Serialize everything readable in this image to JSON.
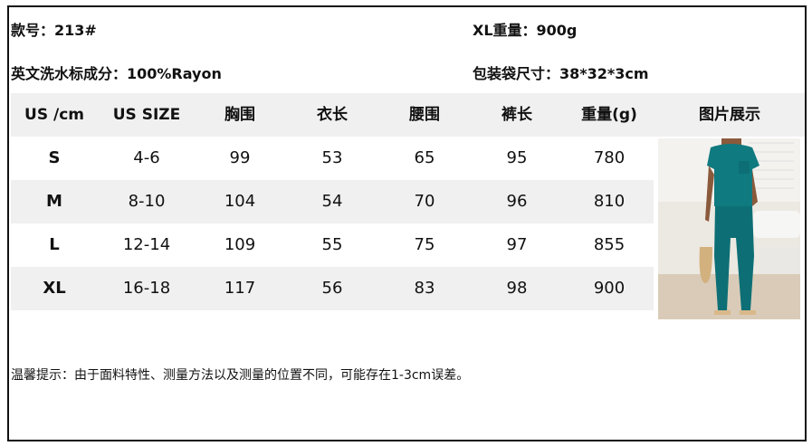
{
  "info": {
    "style_no": "款号：213#",
    "xl_weight": "XL重量：900g",
    "composition": "英文洗水标成分：100%Rayon",
    "bag_size": "包装袋尺寸：38*32*3cm"
  },
  "table": {
    "headers": [
      "US /cm",
      "US SIZE",
      "胸围",
      "衣长",
      "腰围",
      "裤长",
      "重量(g)",
      "图片展示"
    ],
    "rows": [
      [
        "S",
        "4-6",
        "99",
        "53",
        "65",
        "95",
        "780"
      ],
      [
        "M",
        "8-10",
        "104",
        "54",
        "70",
        "96",
        "810"
      ],
      [
        "L",
        "12-14",
        "109",
        "55",
        "75",
        "97",
        "855"
      ],
      [
        "XL",
        "16-18",
        "117",
        "56",
        "83",
        "98",
        "900"
      ]
    ]
  },
  "note": "温馨提示：由于面料特性、测量方法以及测量的位置不同，可能存在1-3cm误差。",
  "colors": {
    "header_bg": "#f0f0f0",
    "garment": "#0f7a80"
  }
}
